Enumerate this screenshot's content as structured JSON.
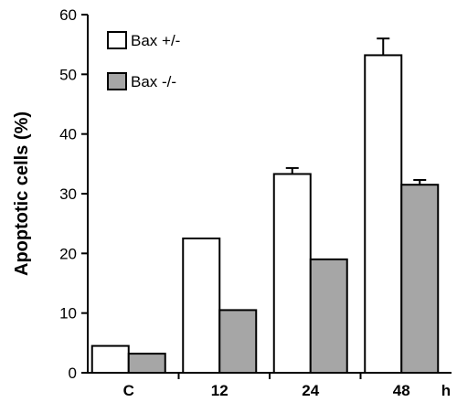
{
  "chart_data": {
    "type": "bar",
    "categories": [
      "C",
      "12",
      "24",
      "48"
    ],
    "series": [
      {
        "name": "Bax +/-",
        "values": [
          4.5,
          22.5,
          33.3,
          53.2
        ],
        "errors": [
          0,
          0,
          1.0,
          2.8
        ],
        "color": "#ffffff"
      },
      {
        "name": "Bax -/-",
        "values": [
          3.2,
          10.5,
          19.0,
          31.5
        ],
        "errors": [
          0,
          0,
          0,
          0.8
        ],
        "color": "#a6a6a6"
      }
    ],
    "ylabel": "Apoptotic cells (%)",
    "xunit": "h",
    "ylim": [
      0,
      60
    ],
    "yticks": [
      0,
      10,
      20,
      30,
      40,
      50,
      60
    ],
    "legend_position": "top-left",
    "grid": false
  }
}
